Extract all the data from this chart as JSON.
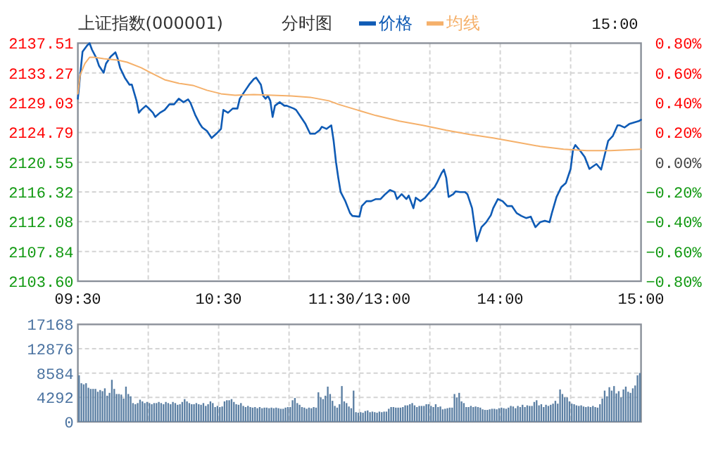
{
  "chart_data": [
    {
      "type": "line",
      "title": "上证指数(000001)",
      "subtitle": "分时图",
      "annotations": [
        "15:00"
      ],
      "legend": "top",
      "grid": true,
      "categories": [
        "09:30",
        null,
        null,
        null,
        null,
        null,
        null,
        null,
        null,
        null,
        null,
        null,
        null,
        null,
        null,
        null,
        null,
        null,
        null,
        null,
        null,
        null,
        null,
        null,
        null,
        null,
        null,
        null,
        null,
        null,
        null,
        null,
        null,
        null,
        null,
        null,
        null,
        null,
        null,
        null,
        null,
        null,
        null,
        null,
        null,
        null,
        null,
        null,
        null,
        null,
        null,
        null,
        null,
        null,
        null,
        null,
        null,
        null,
        null,
        null,
        "10:30",
        null,
        null,
        null,
        null,
        null,
        null,
        null,
        null,
        null,
        null,
        null,
        null,
        null,
        null,
        null,
        null,
        null,
        null,
        null,
        null,
        null,
        null,
        null,
        null,
        null,
        null,
        null,
        null,
        null,
        null,
        null,
        null,
        null,
        null,
        null,
        null,
        null,
        null,
        null,
        null,
        null,
        null,
        null,
        null,
        null,
        null,
        null,
        null,
        null,
        null,
        null,
        null,
        null,
        null,
        null,
        null,
        null,
        null,
        null,
        "11:30/13:00",
        null,
        null,
        null,
        null,
        null,
        null,
        null,
        null,
        null,
        null,
        null,
        null,
        null,
        null,
        null,
        null,
        null,
        null,
        null,
        null,
        null,
        null,
        null,
        null,
        null,
        null,
        null,
        null,
        null,
        null,
        null,
        null,
        null,
        null,
        null,
        null,
        null,
        null,
        null,
        null,
        null,
        null,
        null,
        null,
        null,
        null,
        null,
        null,
        null,
        null,
        null,
        null,
        null,
        null,
        null,
        null,
        null,
        null,
        null,
        "14:00",
        null,
        null,
        null,
        null,
        null,
        null,
        null,
        null,
        null,
        null,
        null,
        null,
        null,
        null,
        null,
        null,
        null,
        null,
        null,
        null,
        null,
        null,
        null,
        null,
        null,
        null,
        null,
        null,
        null,
        null,
        null,
        null,
        null,
        null,
        null,
        null,
        null,
        null,
        null,
        null,
        null,
        null,
        null,
        null,
        null,
        null,
        null,
        null,
        null,
        null,
        null,
        null,
        null,
        null,
        null,
        null,
        null,
        null,
        null,
        "15:00"
      ],
      "ylim": [
        2103.6,
        2137.51
      ],
      "yticks": [
        {
          "value": 2103.6,
          "label": "2103.60"
        },
        2107.84,
        2112.08,
        2116.32,
        2120.55,
        2124.79,
        2129.03,
        2133.27,
        2137.51
      ],
      "y2lim": [
        -0.8,
        0.8
      ],
      "y2ticks": [
        {
          "value": -0.8,
          "label": "−0.80%"
        },
        {
          "value": -0.6,
          "label": "−0.60%"
        },
        {
          "value": -0.4,
          "label": "−0.40%"
        },
        {
          "value": -0.2,
          "label": "−0.20%"
        },
        {
          "value": 0,
          "label": "0.00%"
        },
        {
          "value": 0.2,
          "label": "0.20%"
        },
        {
          "value": 0.4,
          "label": "0.40%"
        },
        {
          "value": 0.6,
          "label": "0.60%"
        },
        {
          "value": 0.8,
          "label": "0.80%"
        }
      ],
      "series": [
        {
          "name": "价格",
          "color": "#0f5bb5",
          "values": [
            2129.6,
            2133.0,
            2136.3,
            null,
            2137.2,
            2137.5,
            2136.6,
            null,
            2135.3,
            2134.3,
            null,
            2133.3,
            2134.6,
            null,
            2135.6,
            null,
            2136.2,
            2135.3,
            2134.0,
            null,
            2132.6,
            null,
            2131.6,
            2131.6,
            null,
            2129.3,
            2127.6,
            2128.0,
            null,
            2128.6,
            2128.3,
            null,
            2127.6,
            2127.0,
            null,
            2127.6,
            null,
            2128.0,
            null,
            2128.8,
            null,
            2128.8,
            null,
            2129.6,
            null,
            2129.1,
            null,
            2129.5,
            2129.0,
            null,
            2127.3,
            null,
            2126.0,
            2125.5,
            null,
            2125.0,
            null,
            2124.0,
            null,
            2124.6,
            null,
            2125.3,
            2128.0,
            null,
            2127.6,
            null,
            2128.2,
            null,
            2128.2,
            2129.6,
            null,
            2130.6,
            null,
            2131.6,
            null,
            2132.4,
            2132.6,
            null,
            2131.6,
            2130.0,
            2129.6,
            2130.0,
            2129.3,
            2127.0,
            2128.6,
            null,
            2129.1,
            null,
            2128.6,
            2128.6,
            null,
            null,
            2128.2,
            2128.0,
            null,
            2127.0,
            null,
            2126.0,
            null,
            2124.6,
            null,
            2124.6,
            null,
            2125.1,
            2125.6,
            null,
            2125.3,
            null,
            2125.8,
            2123.6,
            2120.6,
            2118.3,
            2116.3,
            null,
            2115.0,
            null,
            2113.3,
            2112.9,
            null,
            null,
            2112.8,
            2114.3,
            null,
            2115.0,
            null,
            2115.0,
            null,
            2115.3,
            null,
            2115.3,
            null,
            2116.0,
            null,
            2116.6,
            null,
            2116.3,
            2115.3,
            null,
            2116.0,
            null,
            2115.3,
            2115.8,
            null,
            2114.0,
            2115.5,
            null,
            2115.0,
            null,
            2115.5,
            null,
            2116.3,
            null,
            2117.0,
            2117.6,
            null,
            2119.0,
            2119.5,
            2118.3,
            2115.6,
            null,
            2116.0,
            2116.4,
            null,
            2116.3,
            null,
            2116.3,
            2116.0,
            null,
            2114.0,
            2111.6,
            2109.3,
            null,
            2111.3,
            null,
            2112.0,
            null,
            2113.0,
            2114.0,
            null,
            2115.3,
            null,
            2115.0,
            null,
            2114.3,
            null,
            2114.3,
            null,
            2113.3,
            null,
            2112.9,
            null,
            2112.6,
            null,
            2112.8,
            null,
            2111.3,
            null,
            2112.0,
            null,
            2112.2,
            null,
            2112.0,
            2113.3,
            null,
            2115.6,
            null,
            2117.0,
            null,
            2117.6,
            null,
            2119.6,
            2122.3,
            2123.0,
            null,
            2122.2,
            null,
            2121.3,
            null,
            2119.6,
            null,
            null,
            2120.3,
            null,
            2119.5,
            null,
            null,
            2123.6,
            null,
            2124.3,
            null,
            2125.8,
            2125.8,
            null,
            2125.5,
            null,
            2126.0,
            null,
            2126.2,
            null,
            2126.4,
            2126.6
          ]
        },
        {
          "name": "均线",
          "color": "#f5b06a",
          "values": [
            2130.3,
            2133.0,
            null,
            2134.6,
            null,
            2135.5,
            null,
            2135.5,
            null,
            null,
            null,
            2135.3,
            null,
            null,
            null,
            null,
            null,
            2135.1,
            null,
            null,
            null,
            2134.8,
            null,
            null,
            null,
            null,
            null,
            2134.0,
            null,
            null,
            null,
            2133.3,
            null,
            null,
            null,
            null,
            null,
            2132.3,
            null,
            null,
            null,
            null,
            null,
            2131.8,
            null,
            null,
            null,
            null,
            null,
            2131.5,
            null,
            null,
            null,
            null,
            null,
            2130.8,
            null,
            null,
            null,
            null,
            null,
            2130.3,
            null,
            null,
            null,
            null,
            null,
            2130.1,
            null,
            null,
            null,
            null,
            null,
            null,
            null,
            2130.2,
            null,
            null,
            null,
            null,
            null,
            null,
            null,
            2130.1,
            null,
            null,
            null,
            null,
            null,
            null,
            null,
            2130.0,
            null,
            null,
            null,
            null,
            null,
            null,
            null,
            2129.8,
            null,
            null,
            null,
            null,
            null,
            null,
            null,
            2129.3,
            null,
            null,
            null,
            2128.8,
            null,
            null,
            null,
            null,
            null,
            null,
            null,
            2128.0,
            null,
            null,
            null,
            null,
            null,
            null,
            null,
            2127.2,
            null,
            null,
            null,
            null,
            null,
            null,
            null,
            null,
            null,
            2126.4,
            null,
            null,
            null,
            null,
            null,
            null,
            null,
            null,
            null,
            2125.8,
            null,
            null,
            null,
            null,
            null,
            null,
            null,
            null,
            null,
            2125.1,
            null,
            null,
            null,
            null,
            null,
            null,
            null,
            null,
            null,
            2124.5,
            null,
            null,
            null,
            null,
            null,
            null,
            null,
            null,
            null,
            2124.0,
            null,
            null,
            null,
            null,
            null,
            null,
            null,
            null,
            null,
            2123.4,
            null,
            null,
            null,
            null,
            null,
            null,
            null,
            null,
            null,
            2122.8,
            null,
            null,
            null,
            null,
            null,
            null,
            null,
            null,
            null,
            2122.4,
            null,
            null,
            null,
            null,
            null,
            null,
            null,
            null,
            null,
            2122.2,
            null,
            null,
            null,
            null,
            null,
            null,
            null,
            null,
            null,
            2122.2,
            null,
            null,
            null,
            null,
            null,
            null,
            null,
            null,
            null,
            null,
            null,
            null,
            2122.4
          ]
        }
      ]
    },
    {
      "type": "bar",
      "grid": true,
      "tick_labels": "y",
      "color": "#5b7fa3",
      "categories": [
        null,
        null,
        null,
        null,
        null,
        null,
        null,
        null,
        null,
        null,
        null,
        null,
        null,
        null,
        null,
        null,
        null,
        null,
        null,
        null,
        null,
        null,
        null,
        null,
        null,
        null,
        null,
        null,
        null,
        null,
        null,
        null,
        null,
        null,
        null,
        null,
        null,
        null,
        null,
        null,
        null,
        null,
        null,
        null,
        null,
        null,
        null,
        null,
        null,
        null,
        null,
        null,
        null,
        null,
        null,
        null,
        null,
        null,
        null,
        null,
        null,
        null,
        null,
        null,
        null,
        null,
        null,
        null,
        null,
        null,
        null,
        null,
        null,
        null,
        null,
        null,
        null,
        null,
        null,
        null,
        null,
        null,
        null,
        null,
        null,
        null,
        null,
        null,
        null,
        null,
        null,
        null,
        null,
        null,
        null,
        null,
        null,
        null,
        null,
        null,
        null,
        null,
        null,
        null,
        null,
        null,
        null,
        null,
        null,
        null,
        null,
        null,
        null,
        null,
        null,
        null,
        null,
        null,
        null,
        null,
        null,
        null,
        null,
        null,
        null,
        null,
        null,
        null,
        null,
        null,
        null,
        null,
        null,
        null,
        null,
        null,
        null,
        null,
        null,
        null,
        null,
        null,
        null,
        null,
        null,
        null,
        null,
        null,
        null,
        null,
        null,
        null,
        null,
        null,
        null,
        null,
        null,
        null,
        null,
        null,
        null,
        null,
        null,
        null,
        null,
        null,
        null,
        null,
        null,
        null,
        null,
        null,
        null,
        null,
        null,
        null,
        null,
        null,
        null,
        null,
        null,
        null,
        null,
        null,
        null,
        null,
        null,
        null,
        null,
        null,
        null,
        null,
        null,
        null,
        null,
        null,
        null,
        null,
        null,
        null,
        null,
        null,
        null,
        null,
        null,
        null,
        null,
        null,
        null,
        null,
        null,
        null,
        null,
        null,
        null,
        null,
        null,
        null,
        null,
        null,
        null,
        null,
        null,
        null,
        null,
        null,
        null,
        null,
        null,
        null,
        null,
        null,
        null,
        null,
        null,
        null,
        null,
        null,
        null,
        null
      ],
      "ylim": [
        0,
        17168
      ],
      "yticks": [
        0,
        4292,
        8584,
        12876,
        17168
      ],
      "values": [
        8200,
        6800,
        6600,
        6800,
        6000,
        5800,
        5800,
        5800,
        5300,
        5600,
        5400,
        5900,
        4600,
        5100,
        7400,
        5800,
        4900,
        4900,
        4800,
        4100,
        6200,
        4900,
        4500,
        3300,
        3100,
        3300,
        3900,
        3600,
        3300,
        3500,
        3300,
        3100,
        3300,
        3300,
        3500,
        3300,
        3100,
        3500,
        3300,
        3100,
        3500,
        3300,
        3000,
        3100,
        3500,
        4000,
        3600,
        3300,
        3100,
        3100,
        3300,
        3100,
        3000,
        3300,
        2800,
        3100,
        3600,
        3300,
        2600,
        2800,
        2600,
        2700,
        3600,
        3800,
        3800,
        4000,
        3500,
        3100,
        3000,
        3300,
        2800,
        2600,
        2800,
        2600,
        2500,
        2600,
        2400,
        2600,
        2400,
        2500,
        2500,
        2400,
        2500,
        2400,
        2500,
        2400,
        2300,
        2300,
        2500,
        2600,
        2600,
        3800,
        4200,
        3300,
        3000,
        2600,
        2500,
        2300,
        2500,
        2400,
        2600,
        2500,
        5200,
        4300,
        4000,
        4600,
        6200,
        4900,
        3700,
        2800,
        2500,
        3100,
        6300,
        3600,
        3300,
        2700,
        2400,
        5500,
        1700,
        1600,
        1700,
        1600,
        1900,
        2000,
        1700,
        1800,
        1700,
        1600,
        1800,
        1700,
        1800,
        1800,
        2300,
        2600,
        2600,
        2500,
        2500,
        2500,
        2600,
        2900,
        2900,
        3100,
        3300,
        2900,
        2600,
        2800,
        2800,
        2800,
        3100,
        3100,
        2800,
        2600,
        3100,
        2600,
        2700,
        2200,
        2300,
        2400,
        2500,
        2500,
        4900,
        4300,
        5100,
        3600,
        3300,
        2600,
        2600,
        2800,
        2600,
        2700,
        2600,
        2500,
        2200,
        2100,
        2100,
        2200,
        2300,
        2300,
        2200,
        2400,
        2500,
        2400,
        2300,
        2500,
        2800,
        2700,
        2400,
        2800,
        2600,
        3000,
        2600,
        2900,
        2800,
        2800,
        3500,
        3800,
        2900,
        3100,
        2600,
        3000,
        2800,
        3000,
        3200,
        3700,
        3200,
        5700,
        4900,
        4300,
        4300,
        3600,
        3200,
        3100,
        2900,
        2800,
        2900,
        2700,
        2600,
        2700,
        2600,
        2800,
        2600,
        2500,
        3100,
        4100,
        5500,
        4500,
        6100,
        5500,
        6300,
        5000,
        5400,
        4300,
        5700,
        6200,
        5300,
        5100,
        5900,
        6400,
        8200,
        8600
      ]
    }
  ]
}
